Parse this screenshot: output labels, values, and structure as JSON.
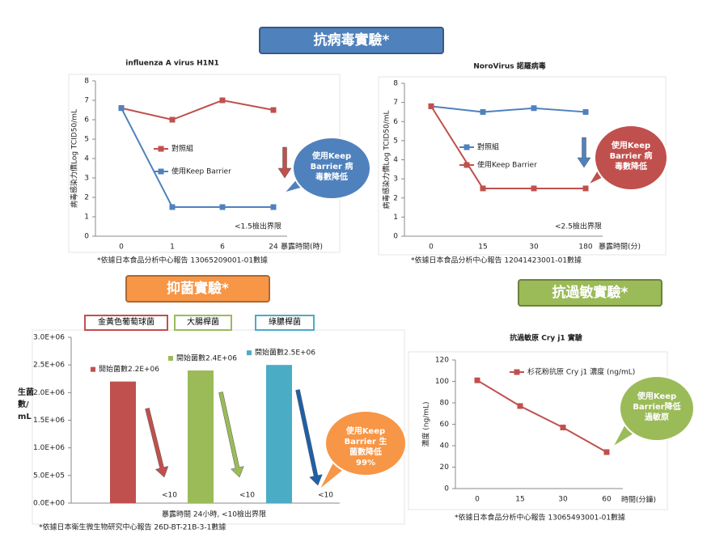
{
  "sections": [
    "抗病毒實驗*",
    "抑菌實驗*",
    "抗過敏實驗*"
  ],
  "chart_data": [
    {
      "type": "line",
      "title": "influenza A virus H1N1",
      "ylabel": "病毒感染力價Log TCID50/mL",
      "xlabel": "暴露時間(時)",
      "categories": [
        "0",
        "1",
        "6",
        "24"
      ],
      "series": [
        {
          "name": "對照組",
          "color": "#c0504d",
          "values": [
            6.6,
            6,
            7,
            6.5
          ]
        },
        {
          "name": "使用Keep Barrier",
          "color": "#4f81bd",
          "values": [
            6.6,
            1.5,
            1.5,
            1.5
          ]
        }
      ],
      "ylim": [
        0,
        8
      ],
      "yticks": [
        0,
        1,
        2,
        3,
        4,
        5,
        6,
        7,
        8
      ],
      "note": "<1.5檢出界限",
      "callout": "使用Keep Barrier 病毒數降低",
      "footnote": "*依據日本食品分析中心報告 13065209001-01數據"
    },
    {
      "type": "line",
      "title": "NoroVirus 諾羅病毒",
      "ylabel": "病毒感染力價Log TCID50/mL",
      "xlabel": "暴露時間(分)",
      "categories": [
        "0",
        "15",
        "30",
        "180"
      ],
      "series": [
        {
          "name": "對照組",
          "color": "#4f81bd",
          "values": [
            6.8,
            6.5,
            6.7,
            6.5
          ]
        },
        {
          "name": "使用Keep Barrier",
          "color": "#c0504d",
          "values": [
            6.8,
            2.5,
            2.5,
            2.5
          ]
        }
      ],
      "ylim": [
        0,
        8
      ],
      "yticks": [
        0,
        1,
        2,
        3,
        4,
        5,
        6,
        7,
        8
      ],
      "note": "<2.5檢出界限",
      "callout": "使用Keep Barrier 病毒數降低",
      "footnote": "*依據日本食品分析中心報告 12041423001-01數據"
    },
    {
      "type": "bar",
      "ylabel": "生菌數/mL",
      "xlabel": "暴露時間 24小時,   <10檢出界限",
      "categories": [
        "金黃色葡萄球菌",
        "大腸桿菌",
        "綠膿桿菌"
      ],
      "values": [
        2200000,
        2400000,
        2500000
      ],
      "value_labels": [
        "開始菌數2.2E+06",
        "開始菌數2.4E+06",
        "開始菌數2.5E+06"
      ],
      "colors": [
        "#c0504d",
        "#9bbb59",
        "#4bacc6"
      ],
      "annotations": [
        "<10",
        "<10",
        "<10"
      ],
      "ylim": [
        0,
        3000000
      ],
      "yticks": [
        {
          "value": 0,
          "label": "0.0E+00"
        },
        {
          "value": 500000,
          "label": "5.0E+05"
        },
        {
          "value": 1000000,
          "label": "1.0E+06"
        },
        {
          "value": 1500000,
          "label": "1.5E+06"
        },
        {
          "value": 2000000,
          "label": "2.0E+06"
        },
        {
          "value": 2500000,
          "label": "2.5E+06"
        },
        {
          "value": 3000000,
          "label": "3.0E+06"
        }
      ],
      "callout": "使用Keep Barrier 生菌數降低 99%",
      "footnote": "*依據日本衛生微生物研究中心報告 26D-BT-21B-3-1數據"
    },
    {
      "type": "line",
      "title": "抗過敏原 Cry j1 實驗",
      "ylabel": "濃度 (ng/mL)",
      "xlabel": "時間(分鐘)",
      "categories": [
        "0",
        "15",
        "30",
        "60"
      ],
      "series": [
        {
          "name": "杉花粉抗原 Cry j1 濃度 (ng/mL)",
          "color": "#c0504d",
          "values": [
            101,
            77,
            57,
            34
          ]
        }
      ],
      "ylim": [
        0,
        120
      ],
      "yticks": [
        0,
        20,
        40,
        60,
        80,
        100,
        120
      ],
      "callout": "使用Keep Barrier降低過敏原",
      "footnote": "*依據日本食品分析中心報告 13065493001-01數據"
    }
  ]
}
